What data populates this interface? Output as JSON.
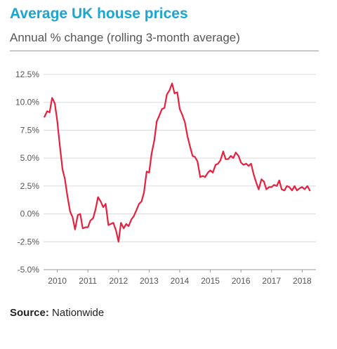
{
  "title": "Average UK house prices",
  "subtitle": "Annual % change (rolling 3-month average)",
  "source_label": "Source:",
  "source_value": "Nationwide",
  "colors": {
    "title": "#1aa6d2",
    "line": "#e8203f",
    "grid": "#d9d9d9",
    "text": "#555555"
  },
  "chart_data": {
    "type": "line",
    "ylim": [
      -5.0,
      12.5
    ],
    "xlim": [
      2009.55,
      2018.45
    ],
    "y_ticks": [
      12.5,
      10.0,
      7.5,
      5.0,
      2.5,
      0.0,
      -2.5,
      -5.0
    ],
    "y_tick_labels": [
      "12.5%",
      "10.0%",
      "7.5%",
      "5.0%",
      "2.5%",
      "0.0%",
      "-2.5%",
      "-5.0%"
    ],
    "x_ticks": [
      2010,
      2011,
      2012,
      2013,
      2014,
      2015,
      2016,
      2017,
      2018
    ],
    "x_tick_labels": [
      "2010",
      "2011",
      "2012",
      "2013",
      "2014",
      "2015",
      "2016",
      "2017",
      "2018"
    ],
    "grid": "horizontal",
    "series": [
      {
        "x": [
          2009.58,
          2009.67,
          2009.75,
          2009.83,
          2009.92,
          2010.0,
          2010.08,
          2010.17,
          2010.25,
          2010.33,
          2010.42,
          2010.5,
          2010.58,
          2010.67,
          2010.75,
          2010.83,
          2010.92,
          2011.0,
          2011.08,
          2011.17,
          2011.25,
          2011.33,
          2011.42,
          2011.5,
          2011.58,
          2011.67,
          2011.75,
          2011.83,
          2011.92,
          2012.0,
          2012.08,
          2012.17,
          2012.25,
          2012.33,
          2012.42,
          2012.5,
          2012.58,
          2012.67,
          2012.75,
          2012.83,
          2012.92,
          2013.0,
          2013.08,
          2013.17,
          2013.25,
          2013.33,
          2013.42,
          2013.5,
          2013.58,
          2013.67,
          2013.75,
          2013.83,
          2013.92,
          2014.0,
          2014.08,
          2014.17,
          2014.25,
          2014.33,
          2014.42,
          2014.5,
          2014.58,
          2014.67,
          2014.75,
          2014.83,
          2014.92,
          2015.0,
          2015.08,
          2015.17,
          2015.25,
          2015.33,
          2015.42,
          2015.5,
          2015.58,
          2015.67,
          2015.75,
          2015.83,
          2015.92,
          2016.0,
          2016.08,
          2016.17,
          2016.25,
          2016.33,
          2016.42,
          2016.5,
          2016.58,
          2016.67,
          2016.75,
          2016.83,
          2016.92,
          2017.0,
          2017.08,
          2017.17,
          2017.25,
          2017.33,
          2017.42,
          2017.5,
          2017.58,
          2017.67,
          2017.75,
          2017.83,
          2017.92,
          2018.0,
          2018.08,
          2018.17,
          2018.25
        ],
        "values": [
          8.7,
          9.2,
          9.1,
          10.4,
          9.9,
          8.3,
          6.2,
          4.0,
          3.1,
          1.6,
          0.2,
          -0.3,
          -1.4,
          -0.1,
          0.0,
          -1.3,
          -1.2,
          -1.2,
          -0.6,
          -0.4,
          0.4,
          1.5,
          1.1,
          0.6,
          0.9,
          -1.0,
          -0.9,
          -0.8,
          -1.5,
          -2.5,
          -0.8,
          -1.3,
          -0.9,
          -1.1,
          -0.5,
          -0.2,
          0.3,
          0.9,
          1.1,
          1.9,
          3.8,
          3.7,
          5.4,
          6.6,
          8.3,
          8.8,
          9.4,
          9.5,
          10.7,
          11.1,
          11.7,
          10.8,
          10.9,
          9.4,
          8.9,
          8.2,
          7.0,
          6.1,
          5.2,
          5.1,
          4.7,
          3.3,
          3.4,
          3.3,
          3.7,
          3.9,
          3.7,
          4.4,
          4.5,
          4.8,
          5.6,
          4.9,
          4.9,
          5.2,
          5.0,
          5.5,
          5.2,
          4.6,
          4.4,
          4.5,
          4.3,
          4.5,
          3.5,
          2.8,
          2.2,
          3.1,
          2.9,
          2.2,
          2.4,
          2.4,
          2.6,
          2.5,
          3.0,
          2.2,
          2.1,
          2.5,
          2.4,
          2.1,
          2.5,
          2.1,
          2.3,
          2.4,
          2.2,
          2.5,
          2.1
        ]
      }
    ]
  }
}
